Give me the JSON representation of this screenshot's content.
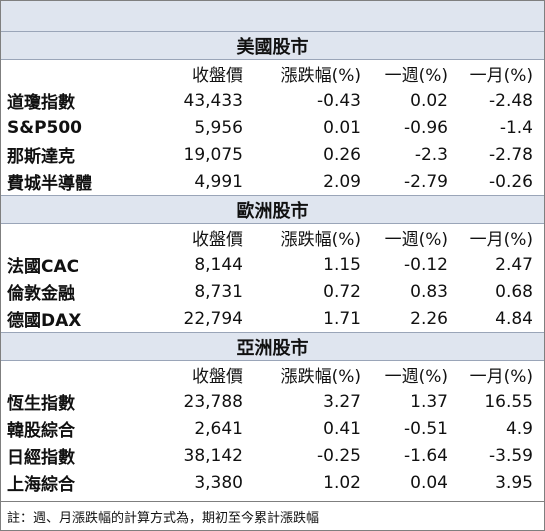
{
  "sections": [
    {
      "title": "美國股市",
      "headers": [
        "",
        "收盤價",
        "漲跌幅(%)",
        "一週(%)",
        "一月(%)"
      ],
      "rows": [
        [
          "道瓊指數",
          "43,433",
          "-0.43",
          "0.02",
          "-2.48"
        ],
        [
          "S&P500",
          "5,956",
          "0.01",
          "-0.96",
          "-1.4"
        ],
        [
          "那斯達克",
          "19,075",
          "0.26",
          "-2.3",
          "-2.78"
        ],
        [
          "費城半導體",
          "4,991",
          "2.09",
          "-2.79",
          "-0.26"
        ]
      ]
    },
    {
      "title": "歐洲股市",
      "headers": [
        "",
        "收盤價",
        "漲跌幅(%)",
        "一週(%)",
        "一月(%)"
      ],
      "rows": [
        [
          "法國CAC",
          "8,144",
          "1.15",
          "-0.12",
          "2.47"
        ],
        [
          "倫敦金融",
          "8,731",
          "0.72",
          "0.83",
          "0.68"
        ],
        [
          "德國DAX",
          "22,794",
          "1.71",
          "2.26",
          "4.84"
        ]
      ]
    },
    {
      "title": "亞洲股市",
      "headers": [
        "",
        "收盤價",
        "漲跌幅(%)",
        "一週(%)",
        "一月(%)"
      ],
      "rows": [
        [
          "恆生指數",
          "23,788",
          "3.27",
          "1.37",
          "16.55"
        ],
        [
          "韓股綜合",
          "2,641",
          "0.41",
          "-0.51",
          "4.9"
        ],
        [
          "日經指數",
          "38,142",
          "-0.25",
          "-1.64",
          "-3.59"
        ],
        [
          "上海綜合",
          "3,380",
          "1.02",
          "0.04",
          "3.95"
        ]
      ]
    }
  ],
  "footnote": "註：週、月漲跌幅的計算方式為，期初至今累計漲跌幅"
}
